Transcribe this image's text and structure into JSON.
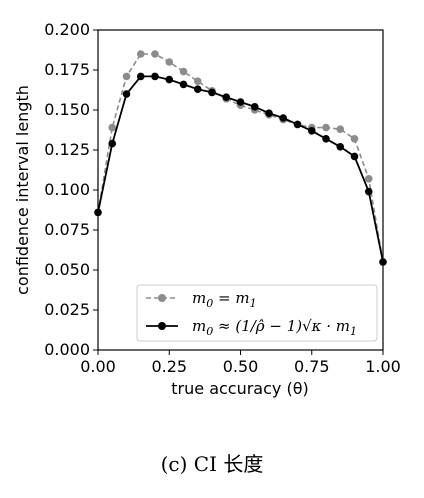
{
  "chart_data": {
    "type": "line",
    "xlabel": "true accuracy (θ)",
    "ylabel": "confidence interval length",
    "xlim": [
      0.0,
      1.0
    ],
    "ylim": [
      0.0,
      0.2
    ],
    "xticks": [
      "0.00",
      "0.25",
      "0.50",
      "0.75",
      "1.00"
    ],
    "yticks": [
      "0.000",
      "0.025",
      "0.050",
      "0.075",
      "0.100",
      "0.125",
      "0.150",
      "0.175",
      "0.200"
    ],
    "grid": false,
    "legend_position": "lower-center",
    "x": [
      0.0,
      0.05,
      0.1,
      0.15,
      0.2,
      0.25,
      0.3,
      0.35,
      0.4,
      0.45,
      0.5,
      0.55,
      0.6,
      0.65,
      0.7,
      0.75,
      0.8,
      0.85,
      0.9,
      0.95,
      1.0
    ],
    "series": [
      {
        "name": "m0 = m1",
        "color": "#8c8c8c",
        "style": "dashed",
        "values": [
          0.086,
          0.139,
          0.171,
          0.185,
          0.185,
          0.18,
          0.174,
          0.168,
          0.162,
          0.157,
          0.153,
          0.15,
          0.147,
          0.144,
          0.141,
          0.139,
          0.139,
          0.138,
          0.132,
          0.107,
          0.055
        ]
      },
      {
        "name": "m0 ≈ (1/ρ̂ − 1)√κ · m1",
        "color": "#000000",
        "style": "solid",
        "values": [
          0.086,
          0.129,
          0.16,
          0.171,
          0.171,
          0.169,
          0.166,
          0.163,
          0.161,
          0.158,
          0.155,
          0.152,
          0.148,
          0.145,
          0.141,
          0.137,
          0.132,
          0.127,
          0.121,
          0.099,
          0.055
        ]
      }
    ]
  },
  "legend": {
    "items": [
      {
        "label_main": "m",
        "label_sub": "0",
        "label_rest": " = m",
        "label_sub2": "1"
      },
      {
        "label_main": "m",
        "label_sub": "0",
        "label_rest": " ≈ (1/ρ̂ − 1)√κ · m",
        "label_sub2": "1"
      }
    ]
  },
  "caption": "(c) CI 长度"
}
